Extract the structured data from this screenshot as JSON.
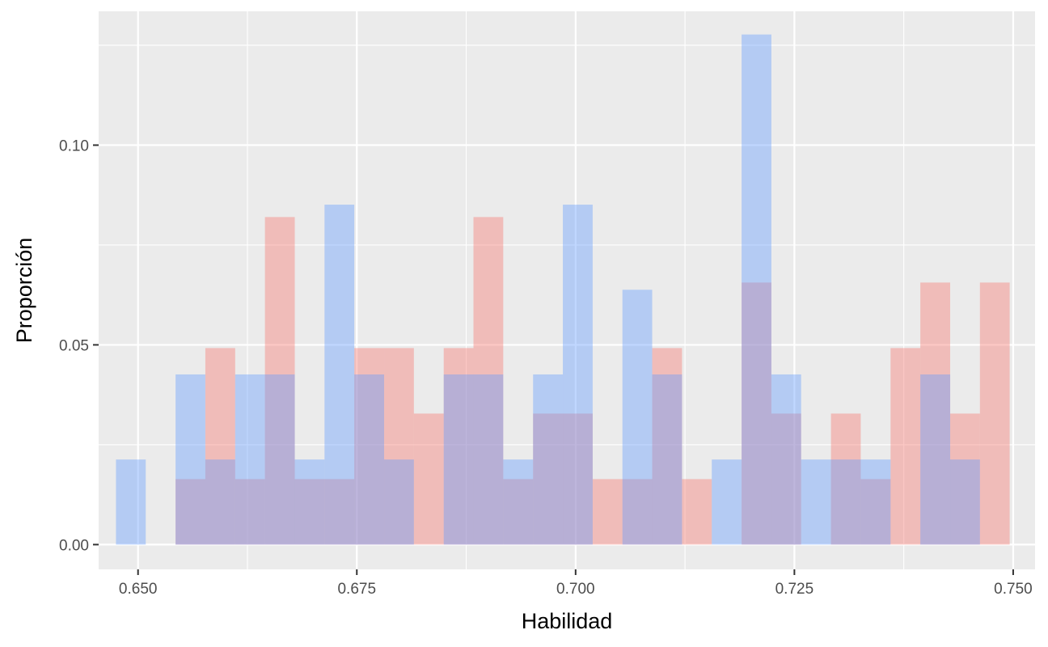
{
  "chart_data": {
    "type": "bar",
    "subtype": "overlapping-histogram",
    "title": "",
    "xlabel": "Habilidad",
    "ylabel": "Proporción",
    "xlim": [
      0.6455,
      0.7525
    ],
    "ylim": [
      -0.0062,
      0.1335
    ],
    "x_ticks": [
      0.65,
      0.675,
      0.7,
      0.725,
      0.75
    ],
    "x_tick_labels": [
      "0.650",
      "0.675",
      "0.700",
      "0.725",
      "0.750"
    ],
    "y_ticks": [
      0.0,
      0.05,
      0.1
    ],
    "y_tick_labels": [
      "0.00",
      "0.05",
      "0.10"
    ],
    "grid": true,
    "legend": "none",
    "series": [
      {
        "color": "#F8766D",
        "opacity": 0.4,
        "bins": [
          {
            "x0": 0.65429,
            "x1": 0.65769,
            "value": 0.0164
          },
          {
            "x0": 0.65769,
            "x1": 0.6611,
            "value": 0.0492
          },
          {
            "x0": 0.6611,
            "x1": 0.6645,
            "value": 0.0164
          },
          {
            "x0": 0.6645,
            "x1": 0.66791,
            "value": 0.082
          },
          {
            "x0": 0.66791,
            "x1": 0.67131,
            "value": 0.0164
          },
          {
            "x0": 0.67131,
            "x1": 0.67471,
            "value": 0.0164
          },
          {
            "x0": 0.67471,
            "x1": 0.67812,
            "value": 0.0492
          },
          {
            "x0": 0.67812,
            "x1": 0.68152,
            "value": 0.0492
          },
          {
            "x0": 0.68152,
            "x1": 0.68493,
            "value": 0.0328
          },
          {
            "x0": 0.68493,
            "x1": 0.68833,
            "value": 0.0492
          },
          {
            "x0": 0.68833,
            "x1": 0.69173,
            "value": 0.082
          },
          {
            "x0": 0.69173,
            "x1": 0.69514,
            "value": 0.0164
          },
          {
            "x0": 0.69514,
            "x1": 0.69854,
            "value": 0.0328
          },
          {
            "x0": 0.69854,
            "x1": 0.70195,
            "value": 0.0328
          },
          {
            "x0": 0.70195,
            "x1": 0.70535,
            "value": 0.0164
          },
          {
            "x0": 0.70535,
            "x1": 0.70875,
            "value": 0.0164
          },
          {
            "x0": 0.70875,
            "x1": 0.71216,
            "value": 0.0492
          },
          {
            "x0": 0.71216,
            "x1": 0.71556,
            "value": 0.0164
          },
          {
            "x0": 0.71897,
            "x1": 0.72237,
            "value": 0.0656
          },
          {
            "x0": 0.72237,
            "x1": 0.72577,
            "value": 0.0328
          },
          {
            "x0": 0.72918,
            "x1": 0.73258,
            "value": 0.0328
          },
          {
            "x0": 0.73258,
            "x1": 0.73599,
            "value": 0.0164
          },
          {
            "x0": 0.73599,
            "x1": 0.73939,
            "value": 0.0492
          },
          {
            "x0": 0.73939,
            "x1": 0.7428,
            "value": 0.0656
          },
          {
            "x0": 0.7428,
            "x1": 0.7462,
            "value": 0.0328
          },
          {
            "x0": 0.7462,
            "x1": 0.7496,
            "value": 0.0656
          }
        ]
      },
      {
        "color": "#619CFF",
        "opacity": 0.4,
        "bins": [
          {
            "x0": 0.64748,
            "x1": 0.65088,
            "value": 0.0213
          },
          {
            "x0": 0.65429,
            "x1": 0.65769,
            "value": 0.0426
          },
          {
            "x0": 0.65769,
            "x1": 0.6611,
            "value": 0.0213
          },
          {
            "x0": 0.6611,
            "x1": 0.6645,
            "value": 0.0426
          },
          {
            "x0": 0.6645,
            "x1": 0.66791,
            "value": 0.0426
          },
          {
            "x0": 0.66791,
            "x1": 0.67131,
            "value": 0.0213
          },
          {
            "x0": 0.67131,
            "x1": 0.67471,
            "value": 0.0851
          },
          {
            "x0": 0.67471,
            "x1": 0.67812,
            "value": 0.0426
          },
          {
            "x0": 0.67812,
            "x1": 0.68152,
            "value": 0.0213
          },
          {
            "x0": 0.68493,
            "x1": 0.68833,
            "value": 0.0426
          },
          {
            "x0": 0.68833,
            "x1": 0.69173,
            "value": 0.0426
          },
          {
            "x0": 0.69173,
            "x1": 0.69514,
            "value": 0.0213
          },
          {
            "x0": 0.69514,
            "x1": 0.69854,
            "value": 0.0426
          },
          {
            "x0": 0.69854,
            "x1": 0.70195,
            "value": 0.0851
          },
          {
            "x0": 0.70535,
            "x1": 0.70875,
            "value": 0.0638
          },
          {
            "x0": 0.70875,
            "x1": 0.71216,
            "value": 0.0426
          },
          {
            "x0": 0.71556,
            "x1": 0.71897,
            "value": 0.0213
          },
          {
            "x0": 0.71897,
            "x1": 0.72237,
            "value": 0.1277
          },
          {
            "x0": 0.72237,
            "x1": 0.72577,
            "value": 0.0426
          },
          {
            "x0": 0.72577,
            "x1": 0.72918,
            "value": 0.0213
          },
          {
            "x0": 0.72918,
            "x1": 0.73258,
            "value": 0.0213
          },
          {
            "x0": 0.73258,
            "x1": 0.73599,
            "value": 0.0213
          },
          {
            "x0": 0.73939,
            "x1": 0.7428,
            "value": 0.0426
          },
          {
            "x0": 0.7428,
            "x1": 0.7462,
            "value": 0.0213
          }
        ]
      }
    ]
  }
}
